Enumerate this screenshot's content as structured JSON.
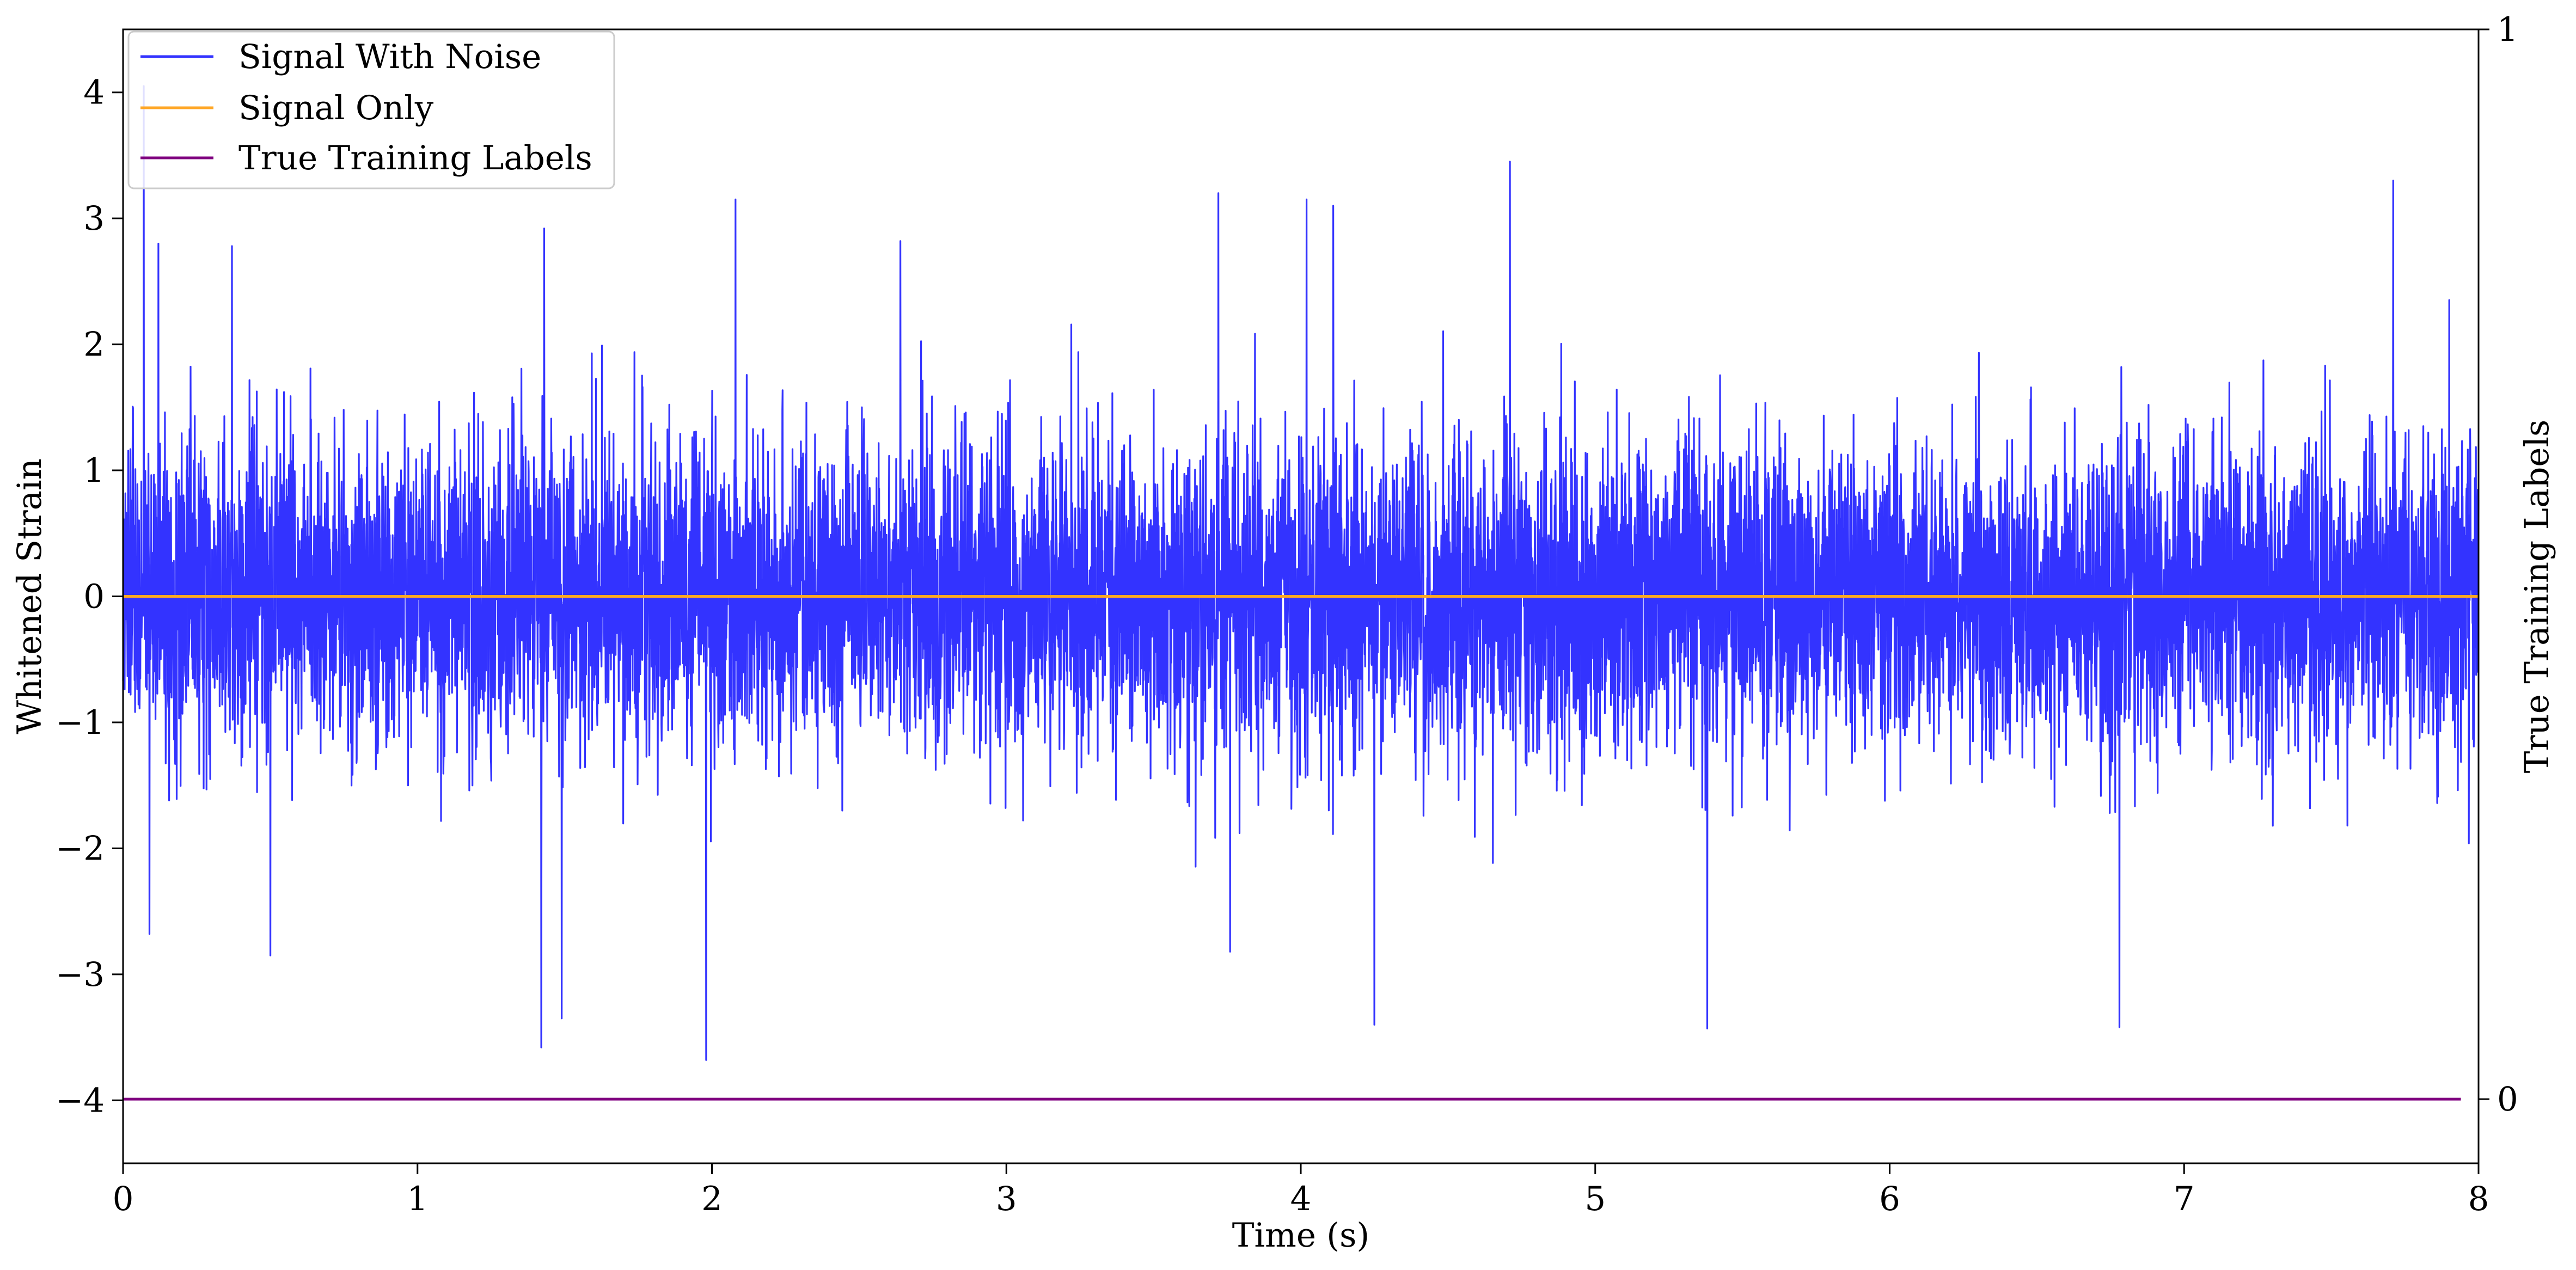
{
  "chart_data": {
    "type": "line",
    "title": "",
    "xlabel": "Time (s)",
    "ylabel": "Whitened Strain",
    "y2label": "True Training Labels",
    "xlim": [
      0,
      8
    ],
    "ylim": [
      -4.5,
      4.5
    ],
    "y2lim": [
      -0.06,
      1.0
    ],
    "x_ticks": [
      0,
      1,
      2,
      3,
      4,
      5,
      6,
      7,
      8
    ],
    "y_ticks": [
      -4,
      -3,
      -2,
      -1,
      0,
      1,
      2,
      3,
      4
    ],
    "y_tick_labels": [
      "−4",
      "−3",
      "−2",
      "−1",
      "0",
      "1",
      "2",
      "3",
      "4"
    ],
    "y2_ticks": [
      0,
      1
    ],
    "grid": false,
    "legend_position": "top-left",
    "series": [
      {
        "name": "Signal With Noise",
        "color": "#3333ff",
        "axis": "left",
        "generated": "dense gaussian-like noise, amplitude mostly within ±1.5",
        "peaks": [
          {
            "x": 0.07,
            "y": 4.05
          },
          {
            "x": 0.12,
            "y": 2.8
          },
          {
            "x": 0.37,
            "y": 2.78
          },
          {
            "x": 1.43,
            "y": 2.92
          },
          {
            "x": 2.08,
            "y": 3.15
          },
          {
            "x": 2.64,
            "y": 2.82
          },
          {
            "x": 3.72,
            "y": 3.2
          },
          {
            "x": 4.02,
            "y": 3.15
          },
          {
            "x": 4.11,
            "y": 3.1
          },
          {
            "x": 4.71,
            "y": 3.45
          },
          {
            "x": 7.71,
            "y": 3.3
          }
        ],
        "troughs": [
          {
            "x": 0.09,
            "y": -2.68
          },
          {
            "x": 0.5,
            "y": -2.85
          },
          {
            "x": 1.42,
            "y": -3.58
          },
          {
            "x": 1.49,
            "y": -3.35
          },
          {
            "x": 1.98,
            "y": -3.68
          },
          {
            "x": 3.76,
            "y": -2.82
          },
          {
            "x": 4.25,
            "y": -3.4
          },
          {
            "x": 5.38,
            "y": -3.43
          },
          {
            "x": 6.78,
            "y": -3.42
          }
        ]
      },
      {
        "name": "Signal Only",
        "color": "#ffa726",
        "axis": "left",
        "x": [
          0,
          8
        ],
        "values": [
          0,
          0
        ]
      },
      {
        "name": "True Training Labels",
        "color": "#800080",
        "axis": "right",
        "x": [
          0,
          7.94
        ],
        "values": [
          0,
          0
        ]
      }
    ]
  }
}
